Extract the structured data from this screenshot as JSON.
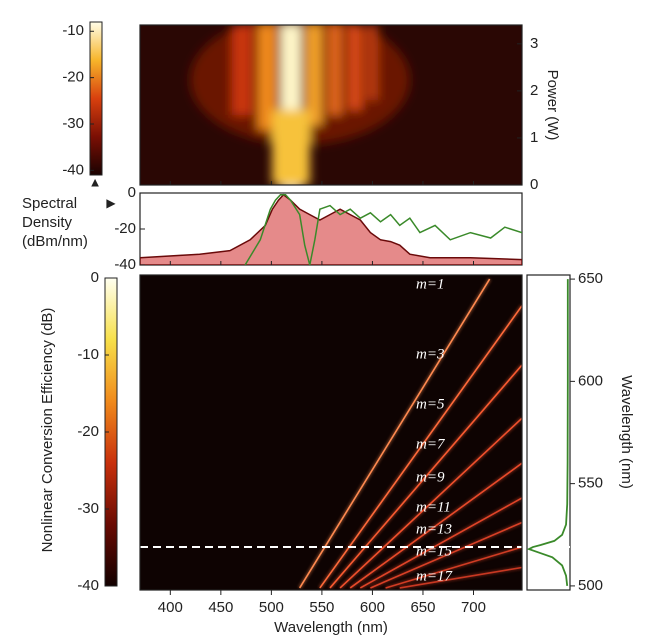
{
  "chart_data": [
    {
      "type": "heatmap",
      "ylabel": "Power (W)",
      "xlim": [
        370,
        748
      ],
      "ylim": [
        0,
        3.4
      ],
      "yticks": [
        0,
        1,
        2,
        3
      ],
      "colorbar": {
        "clim": [
          -41,
          -8
        ],
        "ticks": [
          -10,
          -20,
          -30,
          -40
        ],
        "colors": [
          "#1a0201",
          "#7a0f04",
          "#d8400e",
          "#f7b52a",
          "#fffde8"
        ]
      }
    },
    {
      "type": "area",
      "ylabel_lines": [
        "Spectral",
        "Density",
        "(dBm/nm)"
      ],
      "xlim": [
        370,
        748
      ],
      "ylim": [
        -40,
        0
      ],
      "yticks": [
        -40,
        -20,
        0
      ],
      "series": [
        {
          "color": "#e58a8a",
          "x": [
            370,
            429,
            459,
            479,
            494,
            501,
            507,
            512,
            519,
            528,
            538,
            548,
            558,
            568,
            578,
            588,
            598,
            608,
            618,
            627,
            637,
            657,
            697,
            748
          ],
          "values": [
            -36,
            -34,
            -32,
            -26,
            -18,
            -9,
            -4,
            -1,
            -4,
            -9,
            -12,
            -15,
            -12,
            -9,
            -12,
            -15,
            -22,
            -26,
            -27,
            -29,
            -34,
            -36,
            -36,
            -37
          ]
        },
        {
          "color": "#3a8a2a",
          "x": [
            474,
            489,
            499,
            504,
            509,
            514,
            519,
            528,
            533,
            538,
            543,
            548,
            558,
            568,
            578,
            588,
            598,
            608,
            618,
            627,
            637,
            647,
            662,
            677,
            697,
            717,
            731,
            748
          ],
          "values": [
            -40,
            -26,
            -9,
            -4,
            -1,
            -1,
            -4,
            -12,
            -29,
            -40,
            -26,
            -9,
            -7,
            -12,
            -9,
            -14,
            -11,
            -16,
            -12,
            -18,
            -14,
            -22,
            -18,
            -26,
            -22,
            -25,
            -19,
            -22
          ]
        }
      ]
    },
    {
      "type": "line",
      "xlabel": "Wavelength (nm)",
      "xlim": [
        370,
        748
      ],
      "xticks": [
        400,
        450,
        500,
        550,
        600,
        650,
        700
      ],
      "ylim": [
        498,
        652
      ],
      "hline": 519,
      "colorbar": {
        "label": "Nonlinear Conversion Efficiency (dB)",
        "clim": [
          -40,
          0
        ],
        "ticks": [
          0,
          -10,
          -20,
          -30,
          -40
        ],
        "colors": [
          "#120100",
          "#6a0b03",
          "#c8300c",
          "#f08a1c",
          "#f7e04a",
          "#fffff0"
        ]
      },
      "series": [
        {
          "name": "m=1",
          "color": "#ff8a50",
          "x": [
            528,
            716
          ],
          "values": [
            499,
            650
          ]
        },
        {
          "name": "m=3",
          "color": "#ff6a3a",
          "x": [
            548,
            748
          ],
          "values": [
            499,
            637
          ]
        },
        {
          "name": "m=5",
          "color": "#f85a30",
          "x": [
            558,
            748
          ],
          "values": [
            499,
            608
          ]
        },
        {
          "name": "m=7",
          "color": "#f0502c",
          "x": [
            568,
            748
          ],
          "values": [
            499,
            582
          ]
        },
        {
          "name": "m=9",
          "color": "#e84a2a",
          "x": [
            578,
            748
          ],
          "values": [
            499,
            560
          ]
        },
        {
          "name": "m=11",
          "color": "#e04428",
          "x": [
            588,
            748
          ],
          "values": [
            499,
            543
          ]
        },
        {
          "name": "m=13",
          "color": "#d84026",
          "x": [
            598,
            748
          ],
          "values": [
            499,
            531
          ]
        },
        {
          "name": "m=15",
          "color": "#d03c24",
          "x": [
            613,
            748
          ],
          "values": [
            499,
            519
          ]
        },
        {
          "name": "m=17",
          "color": "#c83822",
          "x": [
            627,
            748
          ],
          "values": [
            499,
            509
          ]
        }
      ]
    },
    {
      "type": "line",
      "ylabel": "Wavelength (nm)",
      "xlim": [
        0,
        1.05
      ],
      "ylim": [
        498,
        652
      ],
      "yticks": [
        500,
        550,
        600,
        650
      ],
      "series": [
        {
          "color": "#3a8a2a",
          "x": [
            0.02,
            0.05,
            0.15,
            0.4,
            0.7,
            1,
            0.9,
            0.7,
            0.35,
            0.15,
            0.05,
            0.02,
            0.01,
            0.005,
            0.005
          ],
          "values": [
            500,
            505,
            510,
            514,
            516,
            518,
            519,
            520,
            522,
            525,
            530,
            540,
            560,
            600,
            650
          ]
        }
      ]
    }
  ]
}
